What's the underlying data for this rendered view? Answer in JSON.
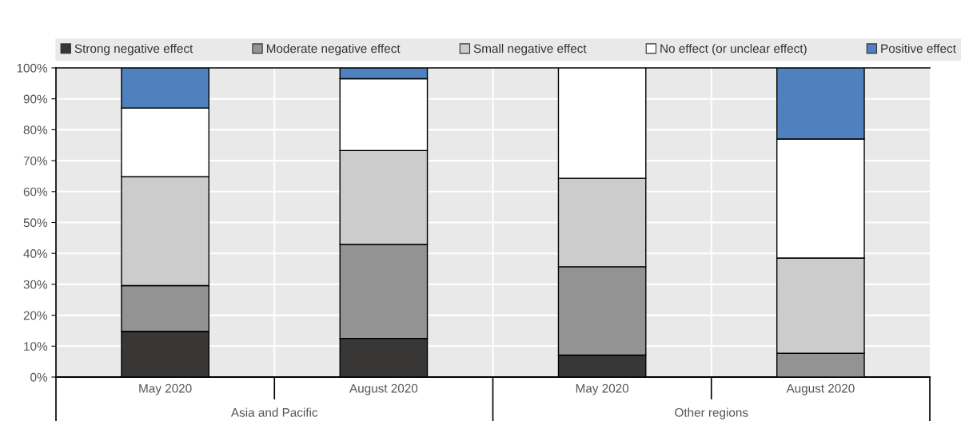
{
  "chart_data": {
    "type": "bar",
    "stacked": true,
    "categories": [
      "May 2020",
      "August 2020",
      "May 2020",
      "August 2020"
    ],
    "series": [
      {
        "name": "Strong negative effect",
        "color": "#383735",
        "values": [
          14.8,
          12.5,
          7.1,
          null
        ]
      },
      {
        "name": "Moderate negative effect",
        "color": "#939393",
        "values": [
          14.8,
          30.4,
          28.6,
          7.7
        ]
      },
      {
        "name": "Small negative effect",
        "color": "#cccccc",
        "values": [
          35.2,
          30.4,
          28.6,
          30.8
        ]
      },
      {
        "name": "No effect (or unclear effect)",
        "color": "#ffffff",
        "values": [
          22.2,
          23.2,
          35.7,
          38.5
        ]
      },
      {
        "name": "Positive effect",
        "color": "#4e81bd",
        "values": [
          13.0,
          3.5,
          null,
          23.0
        ]
      }
    ],
    "annotations": [
      "Asia and Pacific",
      "Other regions"
    ],
    "ylim": [
      0,
      100
    ],
    "yticks": [
      {
        "value": 0,
        "label": "0%"
      },
      {
        "value": 10,
        "label": "10%"
      },
      {
        "value": 20,
        "label": "20%"
      },
      {
        "value": 30,
        "label": "30%"
      },
      {
        "value": 40,
        "label": "40%"
      },
      {
        "value": 50,
        "label": "50%"
      },
      {
        "value": 60,
        "label": "60%"
      },
      {
        "value": 70,
        "label": "70%"
      },
      {
        "value": 80,
        "label": "80%"
      },
      {
        "value": 90,
        "label": "90%"
      },
      {
        "value": 100,
        "label": "100%"
      }
    ],
    "grid": true,
    "legend": "top"
  }
}
